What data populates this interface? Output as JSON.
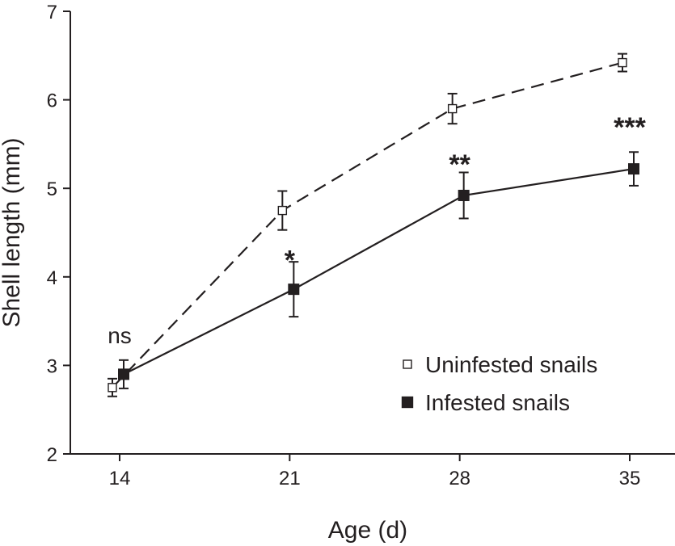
{
  "chart_data": {
    "type": "line",
    "title": "",
    "xlabel": "Age (d)",
    "ylabel": "Shell length (mm)",
    "x_ticks": [
      14,
      21,
      28,
      35
    ],
    "y_ticks": [
      2,
      3,
      4,
      5,
      6,
      7
    ],
    "xlim": [
      12,
      37
    ],
    "ylim": [
      2,
      7
    ],
    "grid": false,
    "legend_position": "bottom-right",
    "series": [
      {
        "name": "Uninfested snails",
        "marker": "open-square",
        "line_style": "dashed",
        "color": "#231f20",
        "x": [
          14,
          21,
          28,
          35
        ],
        "y": [
          2.75,
          4.75,
          5.9,
          6.42
        ],
        "error": [
          0.1,
          0.22,
          0.17,
          0.1
        ]
      },
      {
        "name": "Infested snails",
        "marker": "filled-square",
        "line_style": "solid",
        "color": "#231f20",
        "x": [
          14,
          21,
          28,
          35
        ],
        "y": [
          2.9,
          3.86,
          4.92,
          5.22
        ],
        "error": [
          0.16,
          0.31,
          0.26,
          0.19
        ]
      }
    ],
    "annotations": [
      {
        "x": 14,
        "y": 3.25,
        "text": "ns"
      },
      {
        "x": 21,
        "y": 4.25,
        "text": "*"
      },
      {
        "x": 28,
        "y": 5.33,
        "text": "**"
      },
      {
        "x": 35,
        "y": 5.75,
        "text": "***"
      }
    ]
  }
}
